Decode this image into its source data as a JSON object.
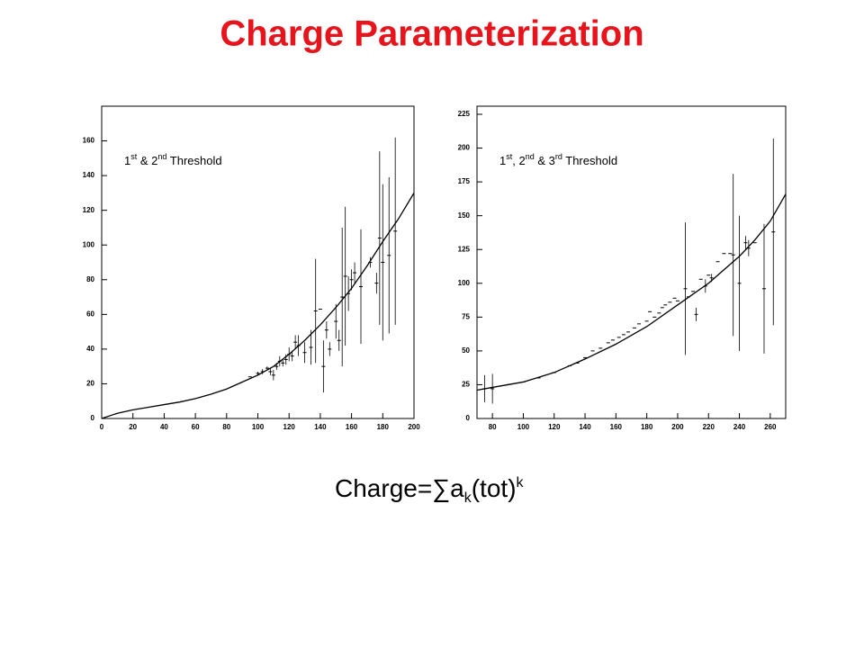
{
  "title": "Charge Parameterization",
  "formula": [
    {
      "text": "Charge="
    },
    {
      "text": "∑"
    },
    {
      "text": "a"
    },
    {
      "text": "k",
      "sub": true
    },
    {
      "text": "(tot)"
    },
    {
      "text": "k",
      "sup": true
    }
  ],
  "chart_data": [
    {
      "type": "scatter",
      "annotation": [
        {
          "text": "1"
        },
        {
          "text": "st",
          "sup": true
        },
        {
          "text": " & 2"
        },
        {
          "text": "nd",
          "sup": true
        },
        {
          "text": " Threshold"
        }
      ],
      "xlim": [
        0,
        200
      ],
      "ylim": [
        0,
        180
      ],
      "xticks": [
        0,
        20,
        40,
        60,
        80,
        100,
        120,
        140,
        160,
        180,
        200
      ],
      "yticks": [
        0,
        20,
        40,
        60,
        80,
        100,
        120,
        140,
        160
      ],
      "color": "#000000",
      "points": {
        "x": [
          95,
          100,
          103,
          106,
          108,
          110,
          112,
          114,
          116,
          118,
          120,
          122,
          124,
          126,
          130,
          134,
          137,
          140,
          142,
          144,
          146,
          150,
          152,
          154,
          156,
          158,
          160,
          162,
          166,
          172,
          176,
          178,
          180,
          184,
          188
        ],
        "values": [
          24,
          26,
          27,
          29,
          27,
          25,
          30,
          33,
          32,
          34,
          37,
          36,
          44,
          42,
          38,
          41,
          62,
          63,
          30,
          51,
          40,
          56,
          45,
          70,
          82,
          72,
          80,
          84,
          76,
          90,
          78,
          104,
          90,
          94,
          108
        ],
        "errors": [
          0,
          1,
          1.5,
          1,
          2,
          3,
          2,
          3,
          2,
          3,
          4,
          3,
          4,
          6,
          6,
          10,
          30,
          0,
          15,
          5,
          4,
          10,
          6,
          40,
          40,
          10,
          6,
          6,
          33,
          3,
          6,
          50,
          45,
          45,
          54
        ]
      },
      "fit": {
        "x": [
          0,
          10,
          20,
          30,
          40,
          50,
          60,
          70,
          80,
          90,
          100,
          110,
          120,
          130,
          140,
          150,
          160,
          170,
          180,
          190,
          200
        ],
        "values": [
          0,
          3,
          5,
          6.5,
          8,
          9.5,
          11.5,
          14,
          17,
          21,
          25,
          30,
          37,
          45,
          54,
          64,
          75,
          88,
          102,
          115,
          130
        ]
      }
    },
    {
      "type": "scatter",
      "annotation": [
        {
          "text": "1"
        },
        {
          "text": "st",
          "sup": true
        },
        {
          "text": ", 2"
        },
        {
          "text": "nd",
          "sup": true
        },
        {
          "text": " & 3"
        },
        {
          "text": "rd",
          "sup": true
        },
        {
          "text": " Threshold"
        }
      ],
      "xlim": [
        70,
        270
      ],
      "ylim": [
        0,
        231
      ],
      "xticks": [
        80,
        100,
        120,
        140,
        160,
        180,
        200,
        220,
        240,
        260
      ],
      "yticks": [
        0,
        25,
        50,
        75,
        100,
        125,
        150,
        175,
        200,
        225
      ],
      "color": "#000000",
      "points": {
        "x": [
          75,
          80,
          90,
          100,
          110,
          120,
          130,
          135,
          140,
          145,
          150,
          155,
          158,
          162,
          165,
          168,
          172,
          175,
          180,
          182,
          185,
          188,
          190,
          192,
          195,
          198,
          200,
          205,
          207,
          210,
          212,
          215,
          218,
          220,
          222,
          226,
          230,
          234,
          236,
          240,
          244,
          246,
          250,
          256,
          262
        ],
        "values": [
          22,
          22,
          25,
          27,
          30,
          34,
          39,
          41,
          45,
          50,
          52,
          56,
          58,
          60,
          62,
          64,
          67,
          70,
          72,
          79,
          75,
          78,
          82,
          84,
          86,
          89,
          87,
          96,
          90,
          94,
          77,
          103,
          98,
          106,
          104,
          116,
          122,
          122,
          121,
          100,
          130,
          126,
          130,
          96,
          138
        ],
        "errors": [
          10,
          11,
          0,
          0,
          0,
          0,
          0,
          0,
          0,
          0,
          0,
          0,
          0,
          0,
          0,
          0,
          0,
          0,
          0,
          0,
          0,
          0,
          0,
          0,
          0,
          0,
          0,
          49,
          0,
          0,
          5,
          0,
          5,
          0,
          3,
          0,
          0,
          0,
          60,
          50,
          5,
          6,
          0,
          48,
          69
        ]
      },
      "fit": {
        "x": [
          70,
          80,
          100,
          120,
          140,
          160,
          180,
          200,
          220,
          240,
          250,
          260,
          270
        ],
        "values": [
          21,
          23,
          27,
          34,
          44,
          55,
          68,
          84,
          100,
          120,
          132,
          146,
          166
        ]
      }
    }
  ]
}
